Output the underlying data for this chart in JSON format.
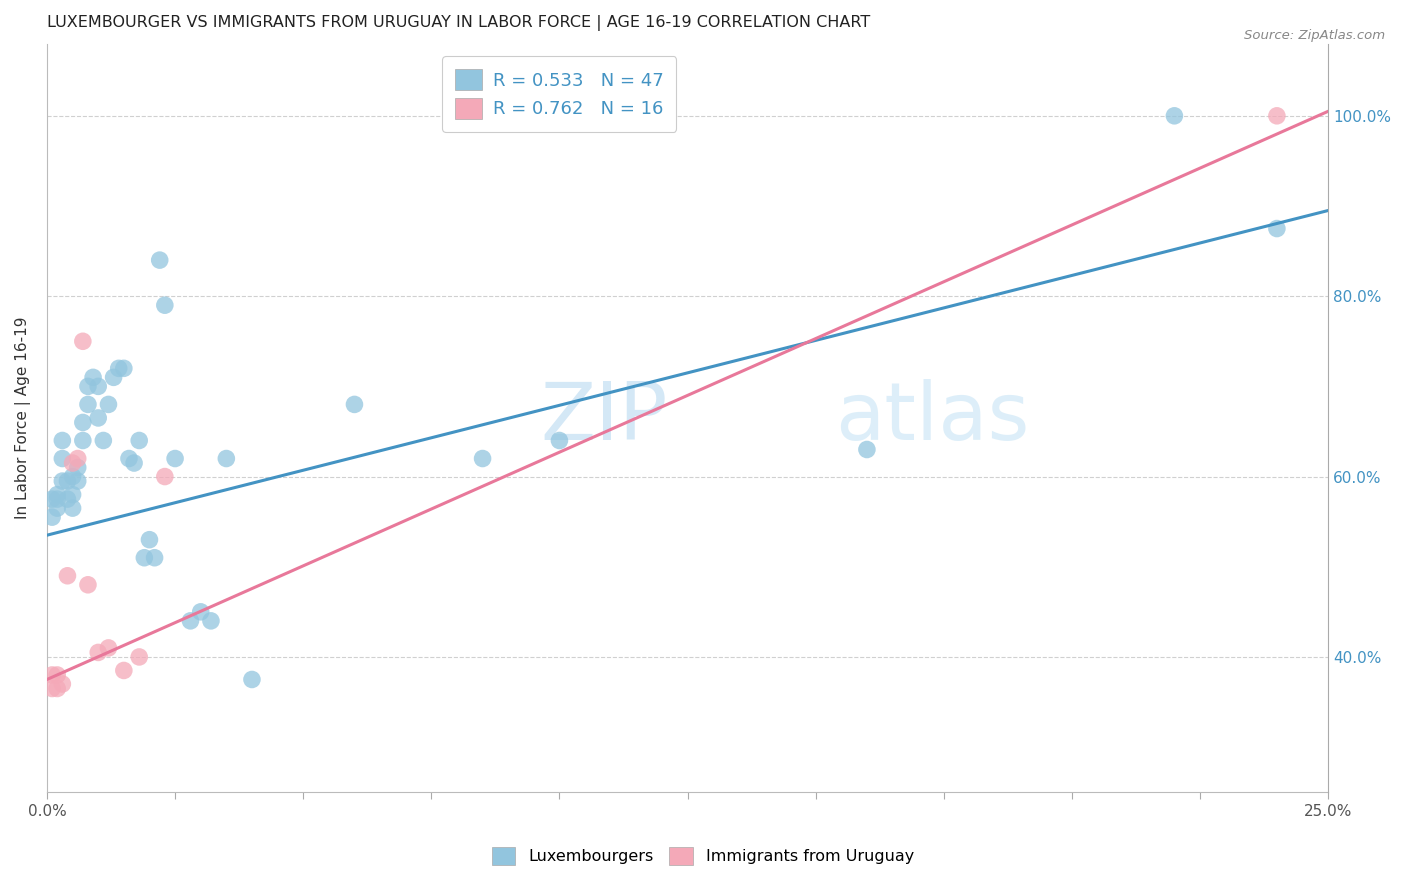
{
  "title": "LUXEMBOURGER VS IMMIGRANTS FROM URUGUAY IN LABOR FORCE | AGE 16-19 CORRELATION CHART",
  "source": "Source: ZipAtlas.com",
  "ylabel": "In Labor Force | Age 16-19",
  "xlim": [
    0.0,
    0.25
  ],
  "ylim": [
    0.25,
    1.08
  ],
  "yticks": [
    0.4,
    0.6,
    0.8,
    1.0
  ],
  "blue_color": "#92c5de",
  "pink_color": "#f4a9b8",
  "blue_line_color": "#4393c3",
  "pink_line_color": "#e8789a",
  "grid_color": "#d0d0d0",
  "blue_scatter_x": [
    0.001,
    0.001,
    0.002,
    0.002,
    0.002,
    0.003,
    0.003,
    0.003,
    0.004,
    0.004,
    0.005,
    0.005,
    0.005,
    0.006,
    0.006,
    0.007,
    0.007,
    0.008,
    0.008,
    0.009,
    0.01,
    0.01,
    0.011,
    0.012,
    0.013,
    0.014,
    0.015,
    0.016,
    0.017,
    0.018,
    0.019,
    0.02,
    0.021,
    0.022,
    0.023,
    0.025,
    0.028,
    0.03,
    0.032,
    0.035,
    0.04,
    0.06,
    0.085,
    0.1,
    0.16,
    0.22,
    0.24
  ],
  "blue_scatter_y": [
    0.575,
    0.555,
    0.575,
    0.58,
    0.565,
    0.595,
    0.62,
    0.64,
    0.595,
    0.575,
    0.565,
    0.6,
    0.58,
    0.595,
    0.61,
    0.64,
    0.66,
    0.7,
    0.68,
    0.71,
    0.665,
    0.7,
    0.64,
    0.68,
    0.71,
    0.72,
    0.72,
    0.62,
    0.615,
    0.64,
    0.51,
    0.53,
    0.51,
    0.84,
    0.79,
    0.62,
    0.44,
    0.45,
    0.44,
    0.62,
    0.375,
    0.68,
    0.62,
    0.64,
    0.63,
    1.0,
    0.875
  ],
  "pink_scatter_x": [
    0.001,
    0.001,
    0.002,
    0.002,
    0.003,
    0.004,
    0.005,
    0.006,
    0.007,
    0.008,
    0.01,
    0.012,
    0.015,
    0.018,
    0.023,
    0.24
  ],
  "pink_scatter_y": [
    0.38,
    0.365,
    0.38,
    0.365,
    0.37,
    0.49,
    0.615,
    0.62,
    0.75,
    0.48,
    0.405,
    0.41,
    0.385,
    0.4,
    0.6,
    1.0
  ],
  "blue_trend_x0": 0.0,
  "blue_trend_y0": 0.535,
  "blue_trend_x1": 0.25,
  "blue_trend_y1": 0.895,
  "pink_trend_x0": 0.0,
  "pink_trend_y0": 0.375,
  "pink_trend_x1": 0.25,
  "pink_trend_y1": 1.005,
  "legend_label_blue": "Luxembourgers",
  "legend_label_pink": "Immigrants from Uruguay",
  "legend_R_blue": "R = 0.533",
  "legend_N_blue": "N = 47",
  "legend_R_pink": "R = 0.762",
  "legend_N_pink": "N = 16"
}
